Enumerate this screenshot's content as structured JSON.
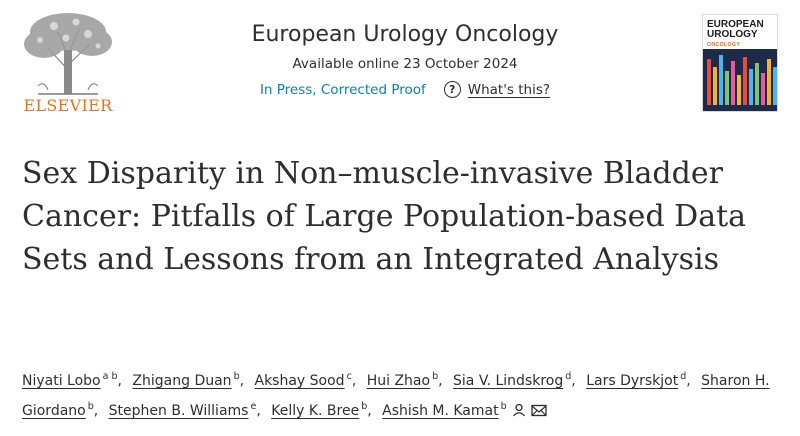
{
  "header": {
    "publisher": "ELSEVIER",
    "journal_title": "European Urology Oncology",
    "availability": "Available online 23 October 2024",
    "status_link": "In Press, Corrected Proof",
    "help_icon": "question-circle-icon",
    "help_link": "What's this?",
    "cover_title_line1": "EUROPEAN",
    "cover_title_line2": "UROLOGY",
    "cover_subtitle": "ONCOLOGY",
    "link_color": "#0c7dbb",
    "brand_color": "#e9711c"
  },
  "article": {
    "title": "Sex Disparity in Non–muscle-invasive Bladder Cancer: Pitfalls of Large Population-based Data Sets and Lessons from an Integrated Analysis"
  },
  "authors": [
    {
      "name": "Niyati Lobo",
      "affiliations": "a b"
    },
    {
      "name": "Zhigang Duan",
      "affiliations": "b"
    },
    {
      "name": "Akshay Sood",
      "affiliations": "c"
    },
    {
      "name": "Hui Zhao",
      "affiliations": "b"
    },
    {
      "name": "Sia V. Lindskrog",
      "affiliations": "d"
    },
    {
      "name": "Lars Dyrskjot",
      "affiliations": "d"
    },
    {
      "name": "Sharon H. Giordano",
      "affiliations": "b"
    },
    {
      "name": "Stephen B. Williams",
      "affiliations": "e"
    },
    {
      "name": "Kelly K. Bree",
      "affiliations": "b"
    },
    {
      "name": "Ashish M. Kamat",
      "affiliations": "b",
      "icons": [
        "person-icon",
        "envelope-icon"
      ]
    }
  ]
}
